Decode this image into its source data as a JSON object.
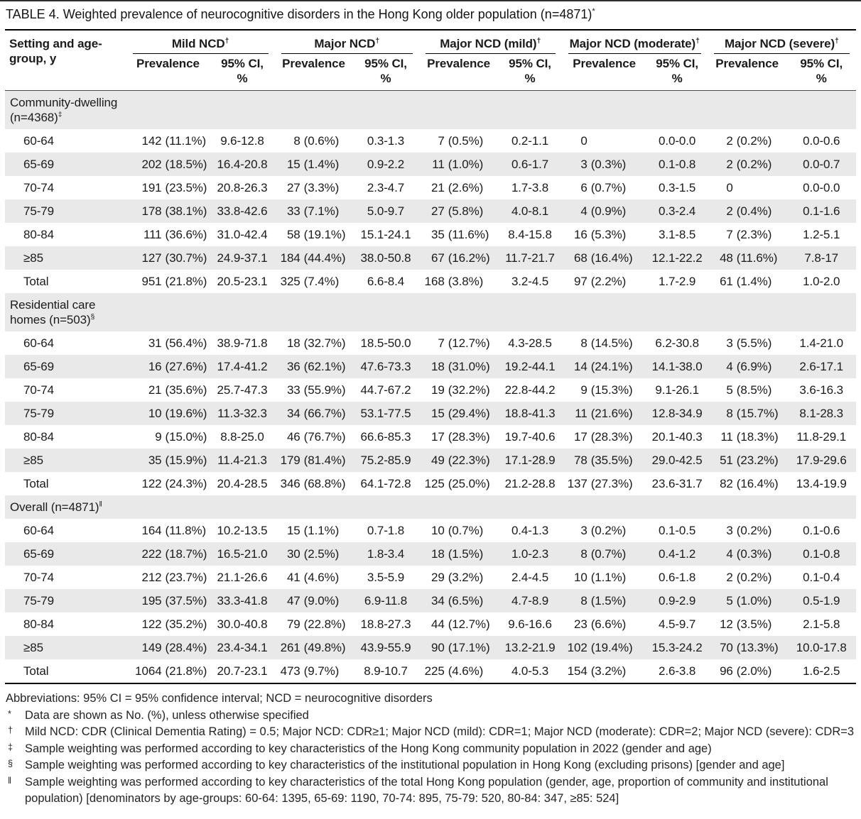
{
  "title": {
    "text": "TABLE 4. Weighted prevalence of neurocognitive disorders in the Hong Kong older population (n=4871)",
    "marker": "*"
  },
  "colors": {
    "stripe": "#e9e9e9",
    "rule": "#000000",
    "text": "#1b1b1b"
  },
  "table": {
    "col0_header": "Setting and age-\ngroup, y",
    "groups": [
      {
        "label": "Mild NCD",
        "marker": "†"
      },
      {
        "label": "Major NCD",
        "marker": "†"
      },
      {
        "label": "Major NCD (mild)",
        "marker": "†"
      },
      {
        "label": "Major NCD (moderate)",
        "marker": "†"
      },
      {
        "label": "Major NCD (severe)",
        "marker": "†"
      }
    ],
    "subheaders": {
      "prevalence": "Prevalence",
      "ci": "95% CI,\n%"
    },
    "sections": [
      {
        "label": "Community-dwelling\n(n=4368)",
        "marker": "‡",
        "rows": [
          {
            "age": "60-64",
            "cells": [
              [
                "142",
                "(11.1%)"
              ],
              "9.6-12.8",
              [
                "8",
                "(0.6%)"
              ],
              "0.3-1.3",
              [
                "7",
                "(0.5%)"
              ],
              "0.2-1.1",
              [
                "0",
                ""
              ],
              "0.0-0.0",
              [
                "2",
                "(0.2%)"
              ],
              "0.0-0.6"
            ]
          },
          {
            "age": "65-69",
            "cells": [
              [
                "202",
                "(18.5%)"
              ],
              "16.4-20.8",
              [
                "15",
                "(1.4%)"
              ],
              "0.9-2.2",
              [
                "11",
                "(1.0%)"
              ],
              "0.6-1.7",
              [
                "3",
                "(0.3%)"
              ],
              "0.1-0.8",
              [
                "2",
                "(0.2%)"
              ],
              "0.0-0.7"
            ]
          },
          {
            "age": "70-74",
            "cells": [
              [
                "191",
                "(23.5%)"
              ],
              "20.8-26.3",
              [
                "27",
                "(3.3%)"
              ],
              "2.3-4.7",
              [
                "21",
                "(2.6%)"
              ],
              "1.7-3.8",
              [
                "6",
                "(0.7%)"
              ],
              "0.3-1.5",
              [
                "0",
                ""
              ],
              "0.0-0.0"
            ]
          },
          {
            "age": "75-79",
            "cells": [
              [
                "178",
                "(38.1%)"
              ],
              "33.8-42.6",
              [
                "33",
                "(7.1%)"
              ],
              "5.0-9.7",
              [
                "27",
                "(5.8%)"
              ],
              "4.0-8.1",
              [
                "4",
                "(0.9%)"
              ],
              "0.3-2.4",
              [
                "2",
                "(0.4%)"
              ],
              "0.1-1.6"
            ]
          },
          {
            "age": "80-84",
            "cells": [
              [
                "111",
                "(36.6%)"
              ],
              "31.0-42.4",
              [
                "58",
                "(19.1%)"
              ],
              "15.1-24.1",
              [
                "35",
                "(11.6%)"
              ],
              "8.4-15.8",
              [
                "16",
                "(5.3%)"
              ],
              "3.1-8.5",
              [
                "7",
                "(2.3%)"
              ],
              "1.2-5.1"
            ]
          },
          {
            "age": "≥85",
            "cells": [
              [
                "127",
                "(30.7%)"
              ],
              "24.9-37.1",
              [
                "184",
                "(44.4%)"
              ],
              "38.0-50.8",
              [
                "67",
                "(16.2%)"
              ],
              "11.7-21.7",
              [
                "68",
                "(16.4%)"
              ],
              "12.1-22.2",
              [
                "48",
                "(11.6%)"
              ],
              "7.8-17"
            ]
          },
          {
            "age": "Total",
            "cells": [
              [
                "951",
                "(21.8%)"
              ],
              "20.5-23.1",
              [
                "325",
                "(7.4%)"
              ],
              "6.6-8.4",
              [
                "168",
                "(3.8%)"
              ],
              "3.2-4.5",
              [
                "97",
                "(2.2%)"
              ],
              "1.7-2.9",
              [
                "61",
                "(1.4%)"
              ],
              "1.0-2.0"
            ]
          }
        ]
      },
      {
        "label": "Residential care\nhomes (n=503)",
        "marker": "§",
        "rows": [
          {
            "age": "60-64",
            "cells": [
              [
                "31",
                "(56.4%)"
              ],
              "38.9-71.8",
              [
                "18",
                "(32.7%)"
              ],
              "18.5-50.0",
              [
                "7",
                "(12.7%)"
              ],
              "4.3-28.5",
              [
                "8",
                "(14.5%)"
              ],
              "6.2-30.8",
              [
                "3",
                "(5.5%)"
              ],
              "1.4-21.0"
            ]
          },
          {
            "age": "65-69",
            "cells": [
              [
                "16",
                "(27.6%)"
              ],
              "17.4-41.2",
              [
                "36",
                "(62.1%)"
              ],
              "47.6-73.3",
              [
                "18",
                "(31.0%)"
              ],
              "19.2-44.1",
              [
                "14",
                "(24.1%)"
              ],
              "14.1-38.0",
              [
                "4",
                "(6.9%)"
              ],
              "2.6-17.1"
            ]
          },
          {
            "age": "70-74",
            "cells": [
              [
                "21",
                "(35.6%)"
              ],
              "25.7-47.3",
              [
                "33",
                "(55.9%)"
              ],
              "44.7-67.2",
              [
                "19",
                "(32.2%)"
              ],
              "22.8-44.2",
              [
                "9",
                "(15.3%)"
              ],
              "9.1-26.1",
              [
                "5",
                "(8.5%)"
              ],
              "3.6-16.3"
            ]
          },
          {
            "age": "75-79",
            "cells": [
              [
                "10",
                "(19.6%)"
              ],
              "11.3-32.3",
              [
                "34",
                "(66.7%)"
              ],
              "53.1-77.5",
              [
                "15",
                "(29.4%)"
              ],
              "18.8-41.3",
              [
                "11",
                "(21.6%)"
              ],
              "12.8-34.9",
              [
                "8",
                "(15.7%)"
              ],
              "8.1-28.3"
            ]
          },
          {
            "age": "80-84",
            "cells": [
              [
                "9",
                "(15.0%)"
              ],
              "8.8-25.0",
              [
                "46",
                "(76.7%)"
              ],
              "66.6-85.3",
              [
                "17",
                "(28.3%)"
              ],
              "19.7-40.6",
              [
                "17",
                "(28.3%)"
              ],
              "20.1-40.3",
              [
                "11",
                "(18.3%)"
              ],
              "11.8-29.1"
            ]
          },
          {
            "age": "≥85",
            "cells": [
              [
                "35",
                "(15.9%)"
              ],
              "11.4-21.3",
              [
                "179",
                "(81.4%)"
              ],
              "75.2-85.9",
              [
                "49",
                "(22.3%)"
              ],
              "17.1-28.9",
              [
                "78",
                "(35.5%)"
              ],
              "29.0-42.5",
              [
                "51",
                "(23.2%)"
              ],
              "17.9-29.6"
            ]
          },
          {
            "age": "Total",
            "cells": [
              [
                "122",
                "(24.3%)"
              ],
              "20.4-28.5",
              [
                "346",
                "(68.8%)"
              ],
              "64.1-72.8",
              [
                "125",
                "(25.0%)"
              ],
              "21.2-28.8",
              [
                "137",
                "(27.3%)"
              ],
              "23.6-31.7",
              [
                "82",
                "(16.4%)"
              ],
              "13.4-19.9"
            ]
          }
        ]
      },
      {
        "label": "Overall (n=4871)",
        "marker": "‖",
        "rows": [
          {
            "age": "60-64",
            "cells": [
              [
                "164",
                "(11.8%)"
              ],
              "10.2-13.5",
              [
                "15",
                "(1.1%)"
              ],
              "0.7-1.8",
              [
                "10",
                "(0.7%)"
              ],
              "0.4-1.3",
              [
                "3",
                "(0.2%)"
              ],
              "0.1-0.5",
              [
                "3",
                "(0.2%)"
              ],
              "0.1-0.6"
            ]
          },
          {
            "age": "65-69",
            "cells": [
              [
                "222",
                "(18.7%)"
              ],
              "16.5-21.0",
              [
                "30",
                "(2.5%)"
              ],
              "1.8-3.4",
              [
                "18",
                "(1.5%)"
              ],
              "1.0-2.3",
              [
                "8",
                "(0.7%)"
              ],
              "0.4-1.2",
              [
                "4",
                "(0.3%)"
              ],
              "0.1-0.8"
            ]
          },
          {
            "age": "70-74",
            "cells": [
              [
                "212",
                "(23.7%)"
              ],
              "21.1-26.6",
              [
                "41",
                "(4.6%)"
              ],
              "3.5-5.9",
              [
                "29",
                "(3.2%)"
              ],
              "2.4-4.5",
              [
                "10",
                "(1.1%)"
              ],
              "0.6-1.8",
              [
                "2",
                "(0.2%)"
              ],
              "0.1-0.4"
            ]
          },
          {
            "age": "75-79",
            "cells": [
              [
                "195",
                "(37.5%)"
              ],
              "33.3-41.8",
              [
                "47",
                "(9.0%)"
              ],
              "6.9-11.8",
              [
                "34",
                "(6.5%)"
              ],
              "4.7-8.9",
              [
                "8",
                "(1.5%)"
              ],
              "0.9-2.9",
              [
                "5",
                "(1.0%)"
              ],
              "0.5-1.9"
            ]
          },
          {
            "age": "80-84",
            "cells": [
              [
                "122",
                "(35.2%)"
              ],
              "30.0-40.8",
              [
                "79",
                "(22.8%)"
              ],
              "18.8-27.3",
              [
                "44",
                "(12.7%)"
              ],
              "9.6-16.6",
              [
                "23",
                "(6.6%)"
              ],
              "4.5-9.7",
              [
                "12",
                "(3.5%)"
              ],
              "2.1-5.8"
            ]
          },
          {
            "age": "≥85",
            "cells": [
              [
                "149",
                "(28.4%)"
              ],
              "23.4-34.1",
              [
                "261",
                "(49.8%)"
              ],
              "43.9-55.9",
              [
                "90",
                "(17.1%)"
              ],
              "13.2-21.9",
              [
                "102",
                "(19.4%)"
              ],
              "15.3-24.2",
              [
                "70",
                "(13.3%)"
              ],
              "10.0-17.8"
            ]
          },
          {
            "age": "Total",
            "cells": [
              [
                "1064",
                "(21.8%)"
              ],
              "20.7-23.1",
              [
                "473",
                "(9.7%)"
              ],
              "8.9-10.7",
              [
                "225",
                "(4.6%)"
              ],
              "4.0-5.3",
              [
                "154",
                "(3.2%)"
              ],
              "2.6-3.8",
              [
                "96",
                "(2.0%)"
              ],
              "1.6-2.5"
            ]
          }
        ]
      }
    ]
  },
  "footnotes": [
    {
      "marker": "",
      "text": "Abbreviations: 95% CI = 95% confidence interval; NCD = neurocognitive disorders"
    },
    {
      "marker": "*",
      "text": "Data are shown as No. (%), unless otherwise specified"
    },
    {
      "marker": "†",
      "text": "Mild NCD: CDR (Clinical Dementia Rating) = 0.5; Major NCD: CDR≥1; Major NCD (mild): CDR=1; Major NCD (moderate): CDR=2; Major NCD (severe): CDR=3"
    },
    {
      "marker": "‡",
      "text": "Sample weighting was performed according to key characteristics of the Hong Kong community population in 2022 (gender and age)"
    },
    {
      "marker": "§",
      "text": "Sample weighting was performed according to key characteristics of the institutional population in Hong Kong (excluding prisons) [gender and age]"
    },
    {
      "marker": "‖",
      "text": "Sample weighting was performed according to key characteristics of the total Hong Kong population (gender, age, proportion of community and institutional population) [denominators by age-groups: 60-64: 1395, 65-69: 1190, 70-74: 895, 75-79: 520, 80-84: 347, ≥85: 524]"
    }
  ]
}
